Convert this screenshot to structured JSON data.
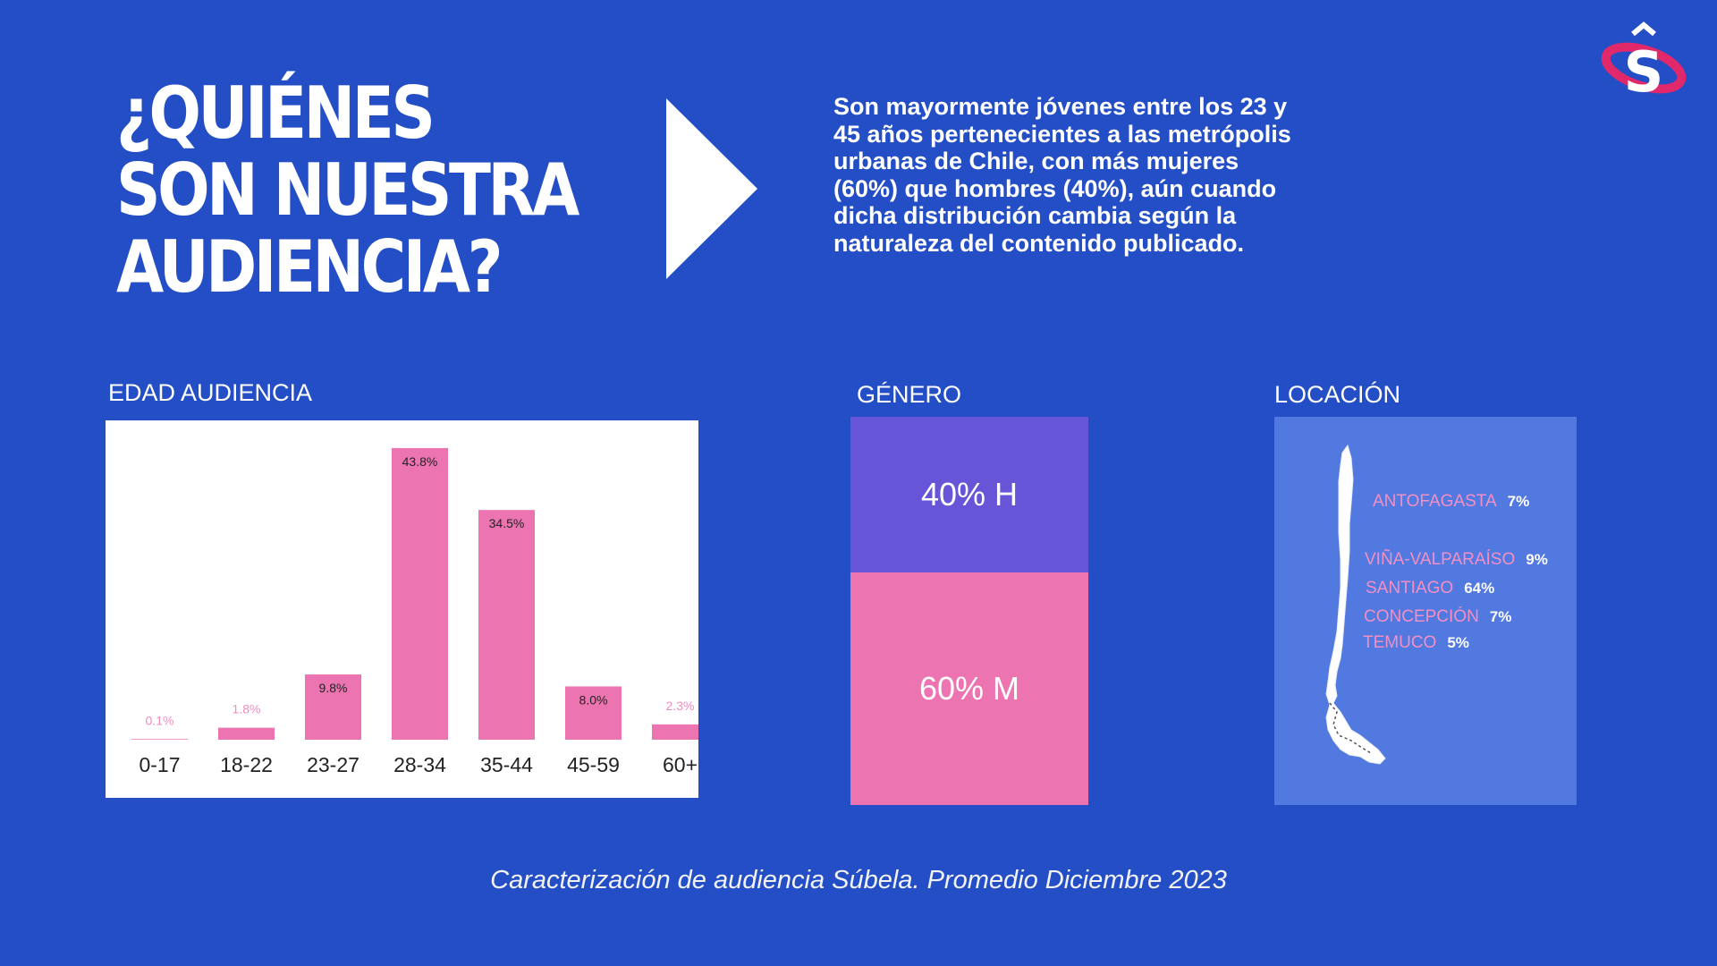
{
  "title": {
    "line1": "¿QUIÉNES",
    "line2": "SON NUESTRA",
    "line3": "AUDIENCIA?"
  },
  "intro_text": "Son mayormente jóvenes entre los 23 y 45 años pertenecientes a las metrópolis urbanas de Chile, con más mujeres (60%) que hombres (40%), aún cuando dicha distribución cambia según la naturaleza del contenido publicado.",
  "sections": {
    "age": "EDAD AUDIENCIA",
    "gender": "GÉNERO",
    "location": "LOCACIÓN"
  },
  "chart_data": [
    {
      "type": "bar",
      "categories": [
        "0-17",
        "18-22",
        "23-27",
        "28-34",
        "35-44",
        "45-59",
        "60+"
      ],
      "values": [
        0.1,
        1.8,
        9.8,
        43.8,
        34.5,
        8.0,
        2.3
      ],
      "data_labels": [
        "0.1%",
        "1.8%",
        "9.8%",
        "43.8%",
        "34.5%",
        "8.0%",
        "2.3%"
      ],
      "title": "EDAD AUDIENCIA",
      "xlabel": "",
      "ylabel": "",
      "ylim": [
        0,
        45
      ],
      "grid": false,
      "colors": {
        "bar": "#ec74b1",
        "inside_label": "#222222",
        "outside_label": "#f08cbf",
        "tick": "#222222"
      }
    },
    {
      "type": "bar",
      "stacked": true,
      "title": "GÉNERO",
      "segments": [
        {
          "label": "40% H",
          "value": 40,
          "color": "#6655d6"
        },
        {
          "label": "60% M",
          "value": 60,
          "color": "#ec74b1"
        }
      ]
    }
  ],
  "location": {
    "cities": [
      {
        "name": "ANTOFAGASTA",
        "pct": "7%"
      },
      {
        "name": "VIÑA-VALPARAÍSO",
        "pct": "9%"
      },
      {
        "name": "SANTIAGO",
        "pct": "64%"
      },
      {
        "name": "CONCEPCIÓN",
        "pct": "7%"
      },
      {
        "name": "TEMUCO",
        "pct": "5%"
      }
    ]
  },
  "caption": "Caracterización de audiencia Súbela. Promedio Diciembre 2023",
  "colors": {
    "background": "#244ec6",
    "pink": "#ec74b1",
    "purple": "#6655d6",
    "map_panel": "#5179e0"
  },
  "icons": {
    "logo": "subela-logo",
    "arrow": "play-arrow-icon",
    "map": "chile-map"
  }
}
